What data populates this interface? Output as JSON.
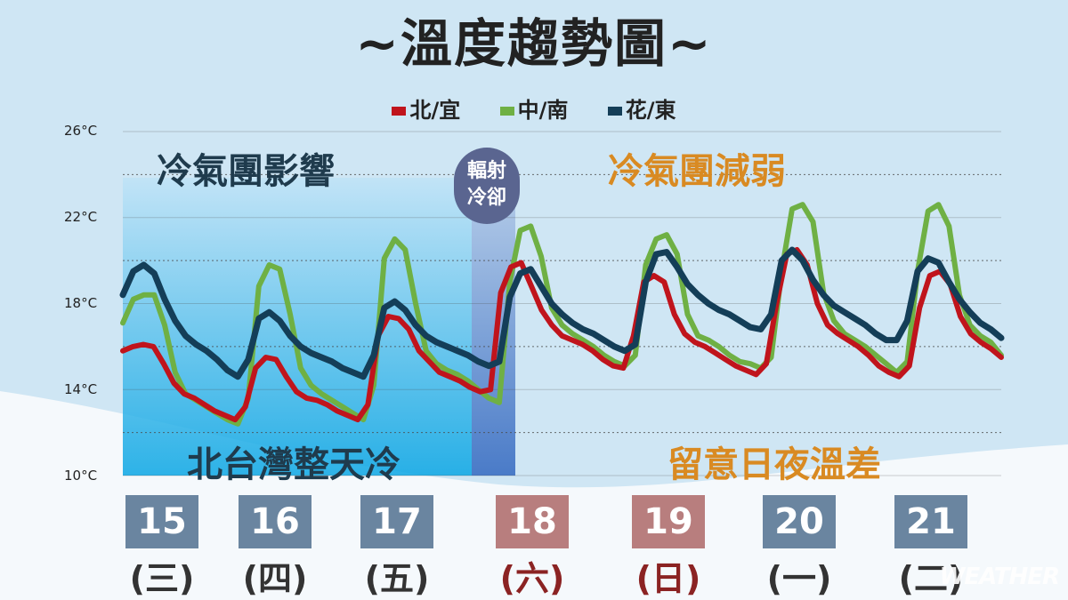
{
  "title": "~溫度趨勢圖~",
  "legend": [
    {
      "name": "北/宜",
      "color": "#c0141c"
    },
    {
      "name": "中/南",
      "color": "#6fb044"
    },
    {
      "name": "花/東",
      "color": "#143e58"
    }
  ],
  "annotations": {
    "cold_mass": "冷氣團影響",
    "cold_weak": "冷氣團減弱",
    "radiative": "輻射冷卻",
    "north_cold": "北台灣整天冷",
    "diurnal": "留意日夜溫差"
  },
  "watermark": "WEATHER",
  "days": [
    {
      "date": "15",
      "weekday": "(三)",
      "color": "#6a85a0",
      "text_color": "#333"
    },
    {
      "date": "16",
      "weekday": "(四)",
      "color": "#6a85a0",
      "text_color": "#333"
    },
    {
      "date": "17",
      "weekday": "(五)",
      "color": "#6a85a0",
      "text_color": "#333"
    },
    {
      "date": "18",
      "weekday": "(六)",
      "color": "#b87e7e",
      "text_color": "#8b2323"
    },
    {
      "date": "19",
      "weekday": "(日)",
      "color": "#b87e7e",
      "text_color": "#8b2323"
    },
    {
      "date": "20",
      "weekday": "(一)",
      "color": "#6a85a0",
      "text_color": "#333"
    },
    {
      "date": "21",
      "weekday": "(二)",
      "color": "#6a85a0",
      "text_color": "#333"
    }
  ],
  "chart_data": {
    "type": "line",
    "y_ticks": [
      "26°C",
      "22°C",
      "18°C",
      "14°C",
      "10°C"
    ],
    "ylim": [
      10,
      26
    ],
    "grid": true,
    "legend_position": "top-center",
    "series": [
      {
        "name": "北/宜",
        "color": "#c0141c",
        "values": [
          15.8,
          16.0,
          16.1,
          16.0,
          15.2,
          14.3,
          13.8,
          13.6,
          13.3,
          13.0,
          12.8,
          12.6,
          13.2,
          15.0,
          15.5,
          15.4,
          14.6,
          13.9,
          13.6,
          13.5,
          13.3,
          13.0,
          12.8,
          12.6,
          13.3,
          16.5,
          17.4,
          17.3,
          16.8,
          15.8,
          15.3,
          14.8,
          14.6,
          14.4,
          14.1,
          13.9,
          14.0,
          18.5,
          19.7,
          19.9,
          18.8,
          17.7,
          17.0,
          16.5,
          16.3,
          16.1,
          15.8,
          15.4,
          15.1,
          15.0,
          16.5,
          19.0,
          19.3,
          19.0,
          17.5,
          16.6,
          16.2,
          16.0,
          15.7,
          15.4,
          15.1,
          14.9,
          14.7,
          15.2,
          18.0,
          20.3,
          20.5,
          19.8,
          18.0,
          17.0,
          16.6,
          16.3,
          16.0,
          15.6,
          15.1,
          14.8,
          14.6,
          15.1,
          17.8,
          19.3,
          19.5,
          18.9,
          17.4,
          16.6,
          16.2,
          15.9,
          15.5
        ]
      },
      {
        "name": "中/南",
        "color": "#6fb044",
        "values": [
          17.1,
          18.2,
          18.4,
          18.4,
          17.0,
          14.8,
          13.8,
          13.5,
          13.2,
          12.9,
          12.6,
          12.4,
          13.6,
          18.8,
          19.8,
          19.6,
          17.5,
          15.0,
          14.2,
          13.8,
          13.5,
          13.2,
          12.9,
          12.6,
          14.2,
          20.1,
          21.0,
          20.5,
          18.0,
          15.8,
          15.2,
          14.9,
          14.7,
          14.4,
          14.0,
          13.6,
          13.4,
          19.0,
          21.4,
          21.6,
          20.2,
          17.8,
          17.0,
          16.6,
          16.3,
          16.0,
          15.6,
          15.3,
          15.1,
          15.6,
          19.8,
          21.0,
          21.2,
          20.3,
          17.5,
          16.5,
          16.3,
          16.0,
          15.6,
          15.3,
          15.2,
          15.0,
          15.5,
          19.5,
          22.4,
          22.6,
          21.8,
          18.5,
          17.2,
          16.6,
          16.3,
          16.0,
          15.6,
          15.2,
          14.8,
          15.3,
          19.5,
          22.3,
          22.6,
          21.6,
          18.4,
          17.0,
          16.5,
          16.2,
          15.6
        ]
      },
      {
        "name": "花/東",
        "color": "#143e58",
        "values": [
          18.4,
          19.5,
          19.8,
          19.4,
          18.2,
          17.2,
          16.5,
          16.1,
          15.8,
          15.4,
          14.9,
          14.6,
          15.4,
          17.3,
          17.6,
          17.2,
          16.5,
          16.0,
          15.7,
          15.5,
          15.3,
          15.0,
          14.8,
          14.6,
          15.6,
          17.8,
          18.1,
          17.7,
          17.0,
          16.5,
          16.2,
          16.0,
          15.8,
          15.6,
          15.3,
          15.1,
          15.3,
          18.3,
          19.4,
          19.6,
          18.8,
          18.0,
          17.5,
          17.1,
          16.8,
          16.6,
          16.3,
          16.0,
          15.8,
          16.1,
          19.0,
          20.3,
          20.4,
          19.7,
          18.9,
          18.4,
          18.0,
          17.7,
          17.5,
          17.2,
          16.9,
          16.8,
          17.5,
          20.0,
          20.5,
          20.0,
          19.1,
          18.4,
          17.9,
          17.6,
          17.3,
          17.0,
          16.6,
          16.3,
          16.3,
          17.2,
          19.5,
          20.1,
          19.9,
          19.0,
          18.2,
          17.6,
          17.1,
          16.8,
          16.4
        ]
      }
    ]
  }
}
